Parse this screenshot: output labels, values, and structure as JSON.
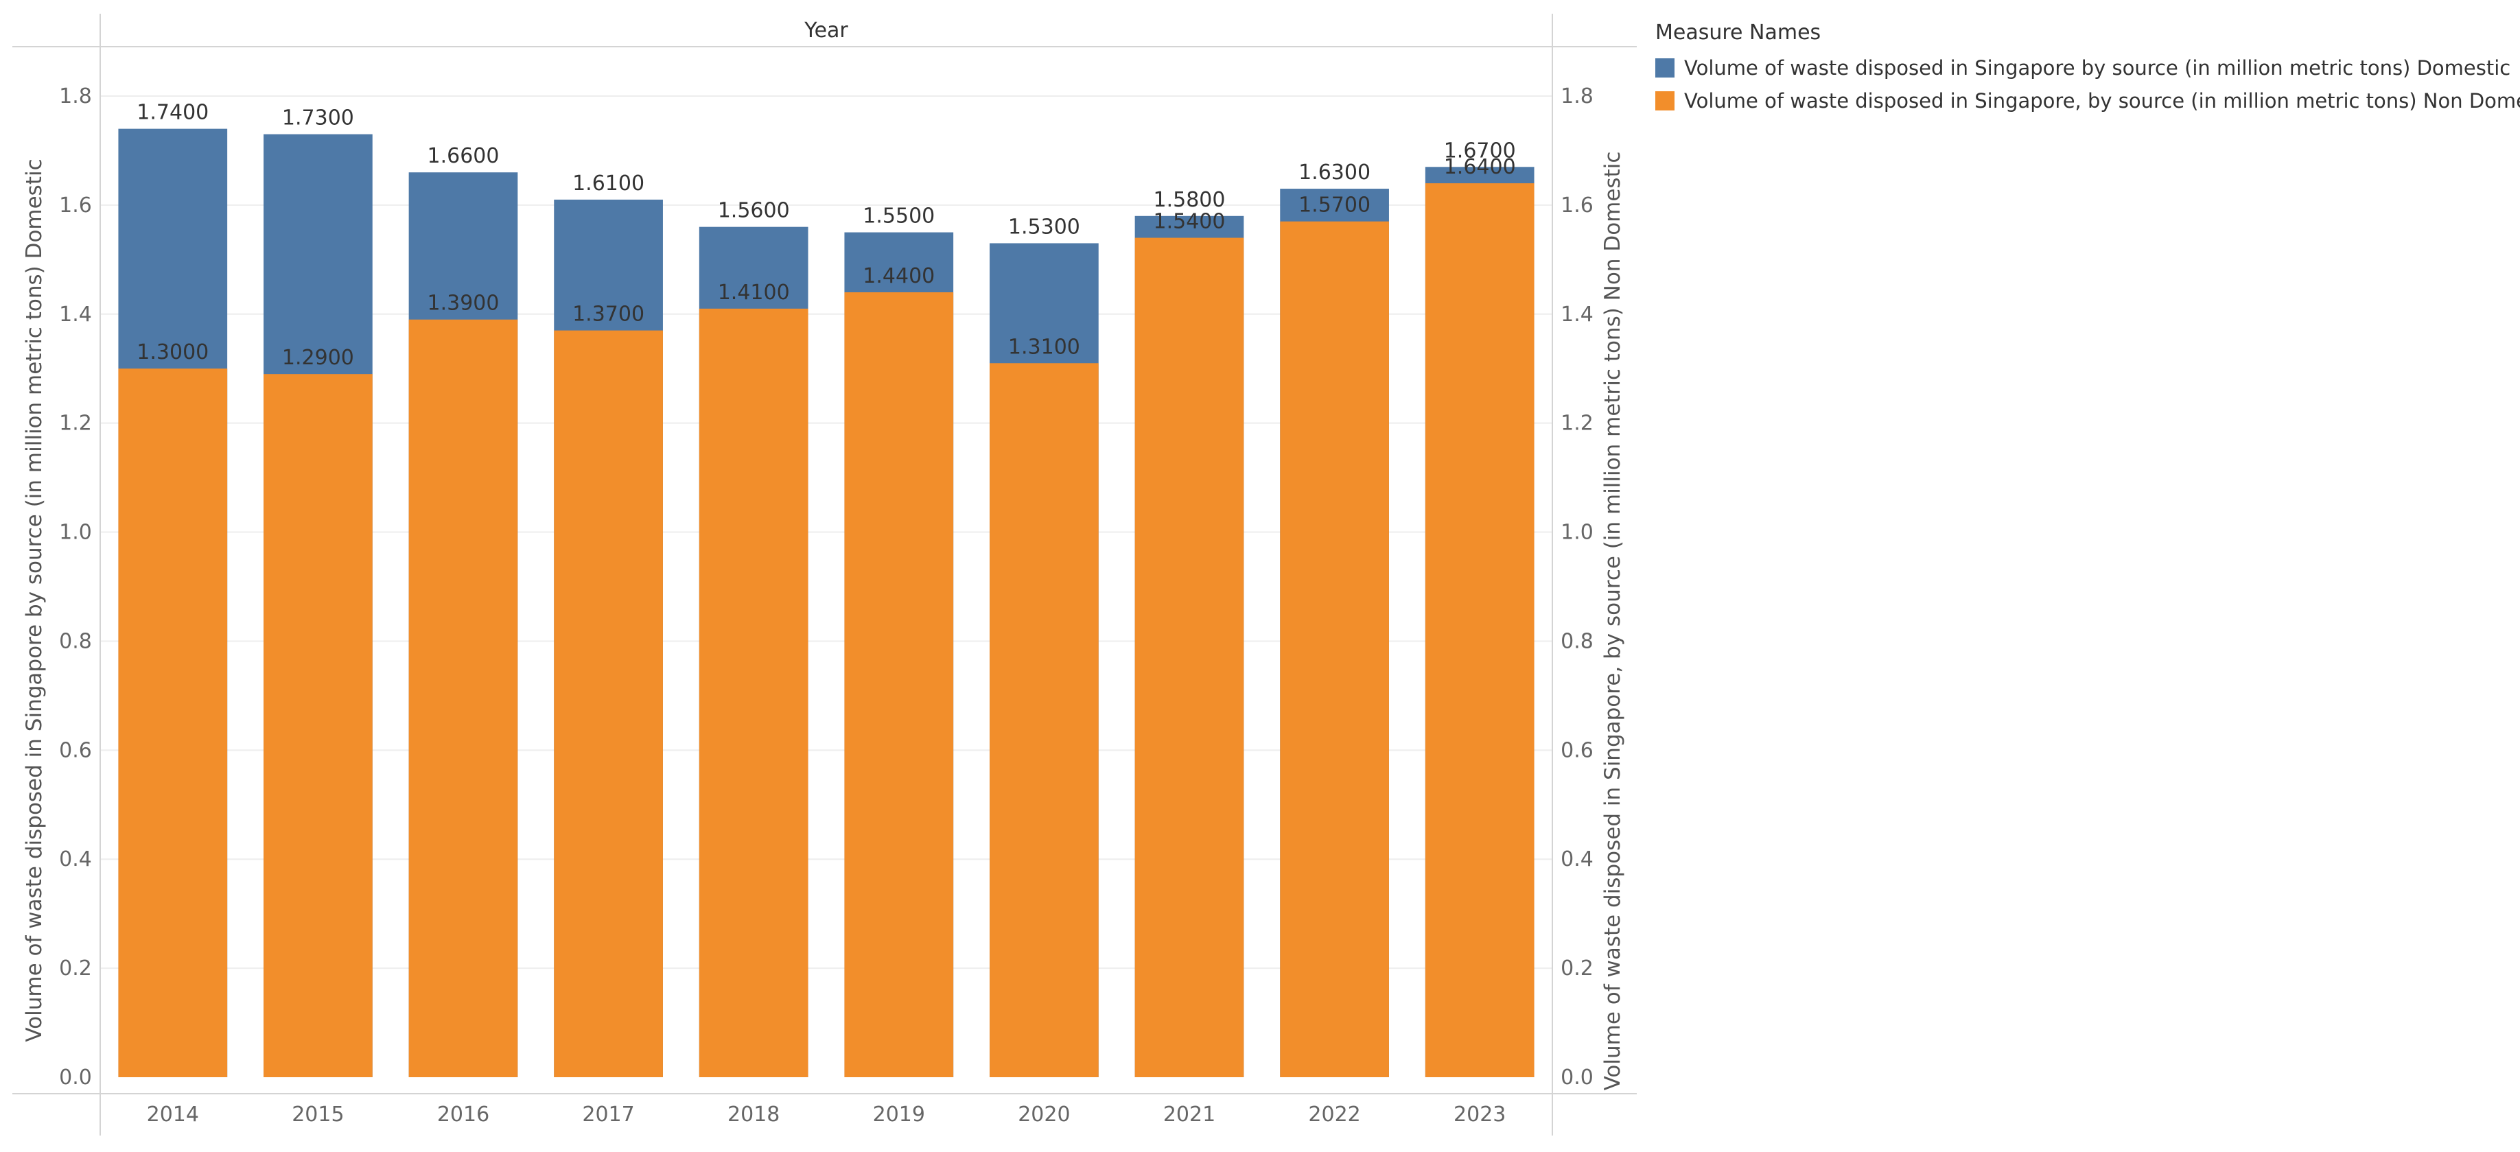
{
  "chart_data": {
    "type": "bar",
    "stacked": false,
    "overlaid": true,
    "title": "",
    "column_header": "Year",
    "categories": [
      "2014",
      "2015",
      "2016",
      "2017",
      "2018",
      "2019",
      "2020",
      "2021",
      "2022",
      "2023"
    ],
    "series": [
      {
        "name": "Volume of waste disposed in Singapore by source (in million metric tons) Domestic",
        "color": "#4e79a7",
        "values": [
          1.74,
          1.73,
          1.66,
          1.61,
          1.56,
          1.55,
          1.53,
          1.58,
          1.63,
          1.67
        ],
        "labels": [
          "1.7400",
          "1.7300",
          "1.6600",
          "1.6100",
          "1.5600",
          "1.5500",
          "1.5300",
          "1.5800",
          "1.6300",
          "1.6700"
        ]
      },
      {
        "name": "Volume of waste disposed in Singapore, by source (in million metric tons) Non Domestic",
        "color": "#f28e2b",
        "values": [
          1.3,
          1.29,
          1.39,
          1.37,
          1.41,
          1.44,
          1.31,
          1.54,
          1.57,
          1.64
        ],
        "labels": [
          "1.3000",
          "1.2900",
          "1.3900",
          "1.3700",
          "1.4100",
          "1.4400",
          "1.3100",
          "1.5400",
          "1.5700",
          "1.6400"
        ]
      }
    ],
    "ylim": [
      0,
      1.8
    ],
    "yticks": [
      0.0,
      0.2,
      0.4,
      0.6,
      0.8,
      1.0,
      1.2,
      1.4,
      1.6,
      1.8
    ],
    "ytick_labels": [
      "0.0",
      "0.2",
      "0.4",
      "0.6",
      "0.8",
      "1.0",
      "1.2",
      "1.4",
      "1.6",
      "1.8"
    ],
    "ylabel_left": "Volume of waste disposed in Singapore by source (in million metric tons) Domestic",
    "ylabel_right": "Volume of waste disposed in Singapore, by source (in million metric tons) Non Domestic",
    "xlabel": "",
    "grid": true,
    "legend": {
      "title": "Measure Names",
      "position": "top-right"
    }
  }
}
